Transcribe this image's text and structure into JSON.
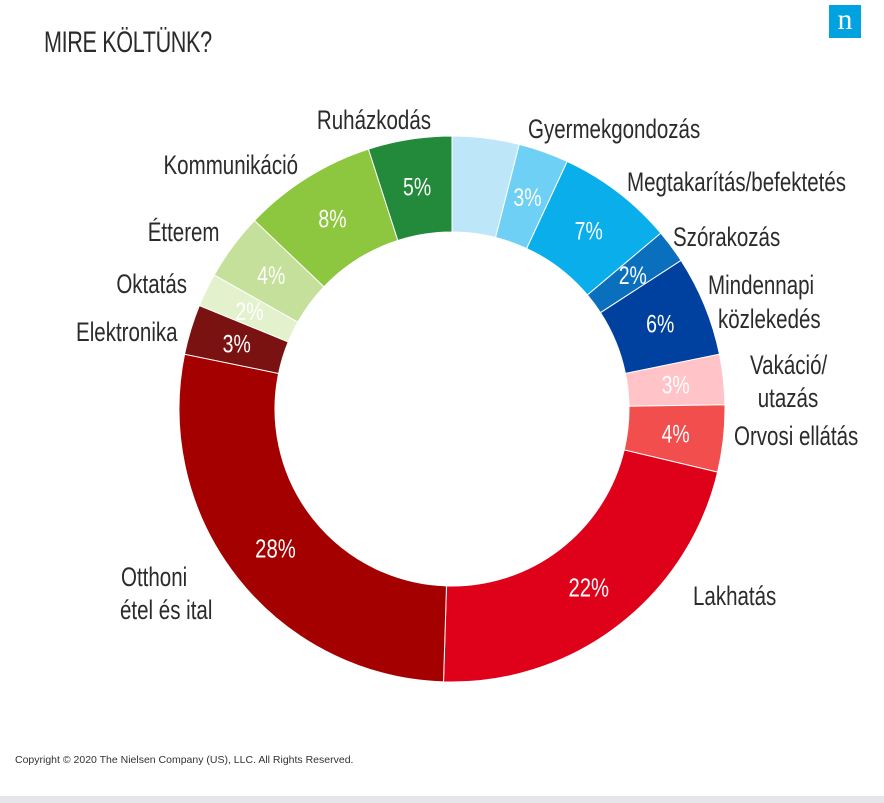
{
  "title": "MIRE KÖLTÜNK?",
  "logo_letter": "n",
  "footer": "Copyright © 2020 The Nielsen Company (US), LLC. All Rights Reserved.",
  "chart_data": {
    "type": "donut",
    "title": "MIRE KÖLTÜNK?",
    "unit": "%",
    "start": "top",
    "direction": "clockwise",
    "segments": [
      {
        "label": "",
        "value": 4,
        "value_label": "",
        "color": "#bde7f8",
        "text_color": "#ffffff"
      },
      {
        "label": "Gyermekgondozás",
        "value": 3,
        "value_label": "3%",
        "color": "#6dd0f4",
        "text_color": "#ffffff"
      },
      {
        "label": "Megtakarítás/befektetés",
        "value": 7,
        "value_label": "7%",
        "color": "#0aaeea",
        "text_color": "#ffffff"
      },
      {
        "label": "Szórakozás",
        "value": 2,
        "value_label": "2%",
        "color": "#0a6fbd",
        "text_color": "#ffffff"
      },
      {
        "label": "Mindennapi közlekedés",
        "label_lines": [
          "Mindennapi",
          "közlekedés"
        ],
        "value": 6,
        "value_label": "6%",
        "color": "#00409e",
        "text_color": "#ffffff"
      },
      {
        "label": "Vakáció/ utazás",
        "label_lines": [
          "Vakáció/",
          "utazás"
        ],
        "value": 3,
        "value_label": "3%",
        "color": "#ffc3c8",
        "text_color": "#ffffff"
      },
      {
        "label": "Orvosi ellátás",
        "value": 4,
        "value_label": "4%",
        "color": "#f24e4e",
        "text_color": "#ffffff"
      },
      {
        "label": "Lakhatás",
        "value": 22,
        "value_label": "22%",
        "color": "#df001a",
        "text_color": "#ffffff"
      },
      {
        "label": "Otthoni étel és ital",
        "label_lines": [
          "Otthoni",
          "étel és ital"
        ],
        "value": 28,
        "value_label": "28%",
        "color": "#a50000",
        "text_color": "#ffffff"
      },
      {
        "label": "Elektronika",
        "value": 3,
        "value_label": "3%",
        "color": "#7b1212",
        "text_color": "#ffffff"
      },
      {
        "label": "Oktatás",
        "value": 2,
        "value_label": "2%",
        "color": "#e3f1cd",
        "text_color": "#ffffff"
      },
      {
        "label": "Étterem",
        "value": 4,
        "value_label": "4%",
        "color": "#c5e09a",
        "text_color": "#ffffff"
      },
      {
        "label": "Kommunikáció",
        "value": 8,
        "value_label": "8%",
        "color": "#8dc63f",
        "text_color": "#ffffff"
      },
      {
        "label": "Ruházkodás",
        "value": 5,
        "value_label": "5%",
        "color": "#238a3b",
        "text_color": "#ffffff"
      }
    ]
  }
}
